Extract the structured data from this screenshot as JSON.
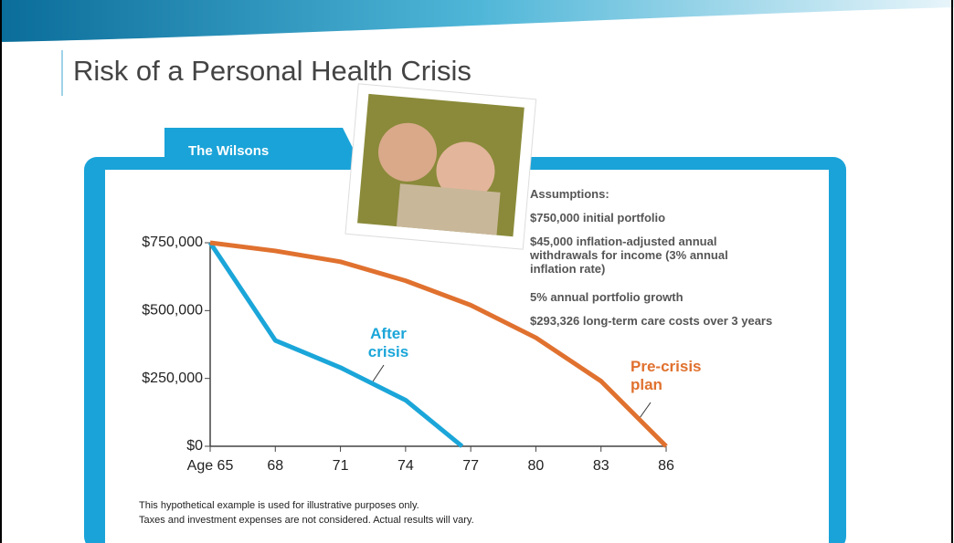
{
  "slide": {
    "title": "Risk of a Personal Health Crisis",
    "tab": "The Wilsons",
    "assumptions": {
      "heading": "Assumptions:",
      "items": [
        "$750,000 initial portfolio",
        "$45,000 inflation-adjusted annual withdrawals for income (3% annual inflation rate)",
        "5% annual portfolio growth",
        "$293,326 long-term care costs over 3 years"
      ]
    },
    "footnote": [
      "This hypothetical example is used for illustrative purposes only.",
      "Taxes and investment expenses are not considered. Actual results will vary."
    ]
  },
  "chart_data": {
    "type": "line",
    "series": [
      {
        "name": "After crisis",
        "color": "#1ba6d9",
        "x": [
          65,
          68,
          71,
          74,
          76.6
        ],
        "values": [
          750000,
          390000,
          290000,
          170000,
          0
        ]
      },
      {
        "name": "Pre-crisis plan",
        "color": "#e0712f",
        "x": [
          65,
          68,
          71,
          74,
          77,
          80,
          83,
          86
        ],
        "values": [
          750000,
          720000,
          680000,
          610000,
          520000,
          400000,
          240000,
          0
        ]
      }
    ],
    "xlim": [
      65,
      86
    ],
    "xticks": [
      {
        "value": 65,
        "label": "Age 65"
      },
      68,
      71,
      74,
      77,
      80,
      83,
      86
    ],
    "ylim": [
      0,
      750000
    ],
    "yticks": [
      {
        "value": 0,
        "label": "$0"
      },
      {
        "value": 250000,
        "label": "$250,000"
      },
      {
        "value": 500000,
        "label": "$500,000"
      },
      {
        "value": 750000,
        "label": "$750,000"
      }
    ]
  }
}
